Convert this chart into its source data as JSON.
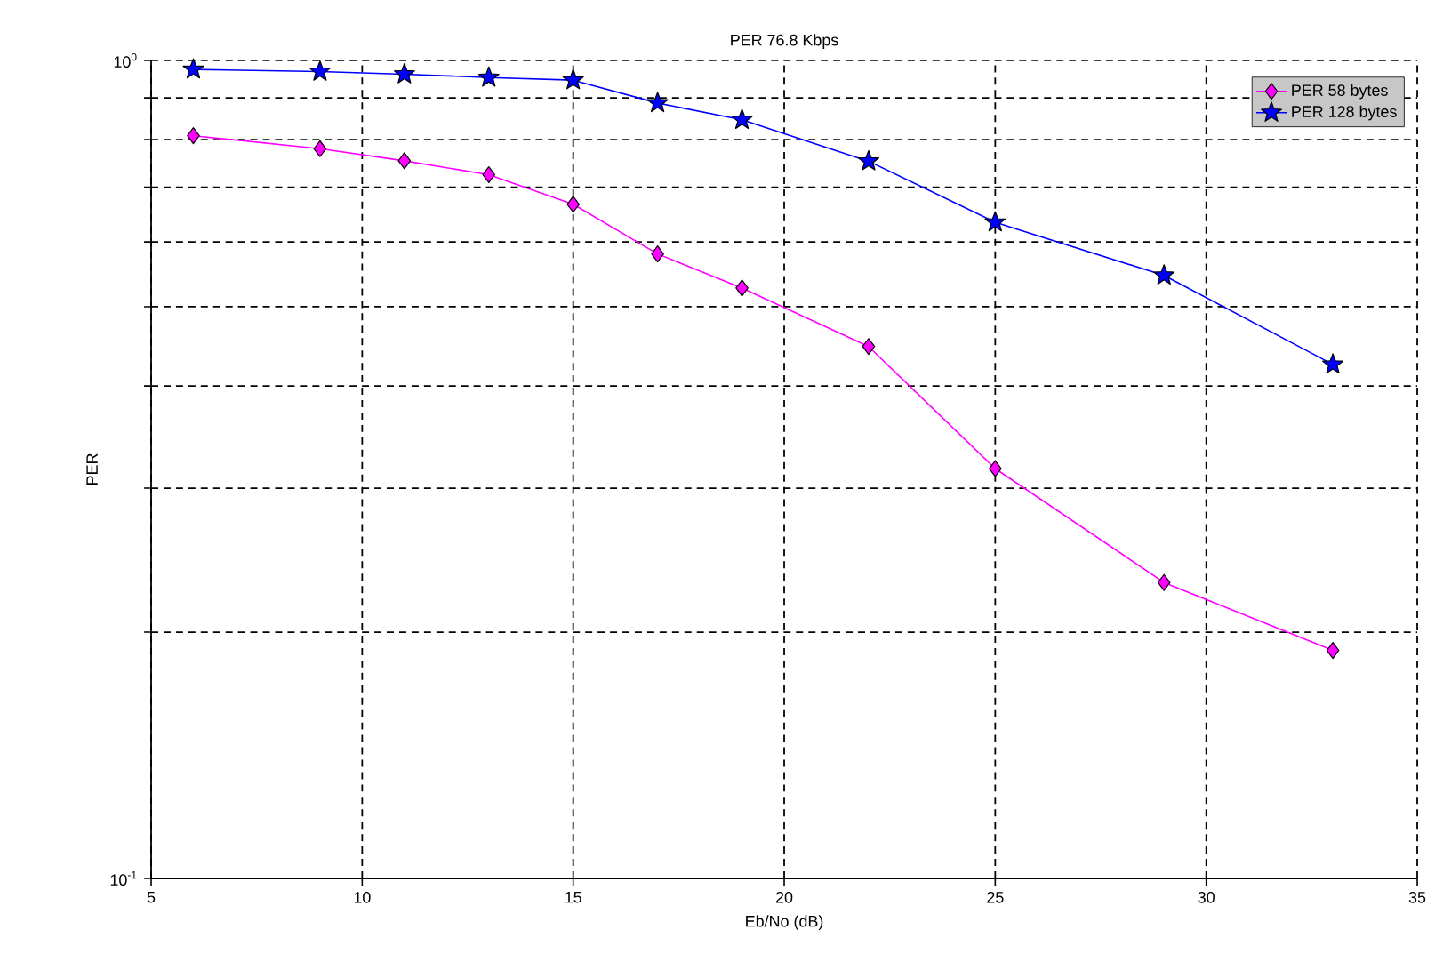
{
  "chart_data": {
    "type": "line",
    "title": "PER 76.8 Kbps",
    "xlabel": "Eb/No (dB)",
    "ylabel": "PER",
    "x": [
      6,
      9,
      11,
      13,
      15,
      17,
      19,
      22,
      25,
      29,
      33
    ],
    "series": [
      {
        "name": "PER 58 bytes",
        "color": "#ff00ff",
        "marker": "diamond",
        "values": [
          0.809,
          0.78,
          0.754,
          0.725,
          0.667,
          0.58,
          0.527,
          0.447,
          0.317,
          0.23,
          0.19
        ]
      },
      {
        "name": "PER 128 bytes",
        "color": "#0000ff",
        "marker": "star",
        "values": [
          0.975,
          0.969,
          0.962,
          0.953,
          0.946,
          0.887,
          0.846,
          0.753,
          0.634,
          0.546,
          0.425
        ]
      }
    ],
    "log": "y",
    "xlim": [
      5,
      35
    ],
    "ylim": [
      0.1,
      1
    ],
    "xticks": [
      5,
      10,
      15,
      20,
      25,
      30,
      35
    ],
    "yticks": [
      {
        "value": 0.1,
        "label": "10$^{-1}$"
      },
      {
        "value": 0.2,
        "label": null
      },
      {
        "value": 0.3,
        "label": null
      },
      {
        "value": 0.4,
        "label": null
      },
      {
        "value": 0.5,
        "label": null
      },
      {
        "value": 0.6,
        "label": null
      },
      {
        "value": 0.7,
        "label": null
      },
      {
        "value": 0.8,
        "label": null
      },
      {
        "value": 0.9,
        "label": null
      },
      {
        "value": 1,
        "label": "10$^{0}$"
      }
    ],
    "grid": true,
    "legend": "top right",
    "line_style": "solid"
  }
}
